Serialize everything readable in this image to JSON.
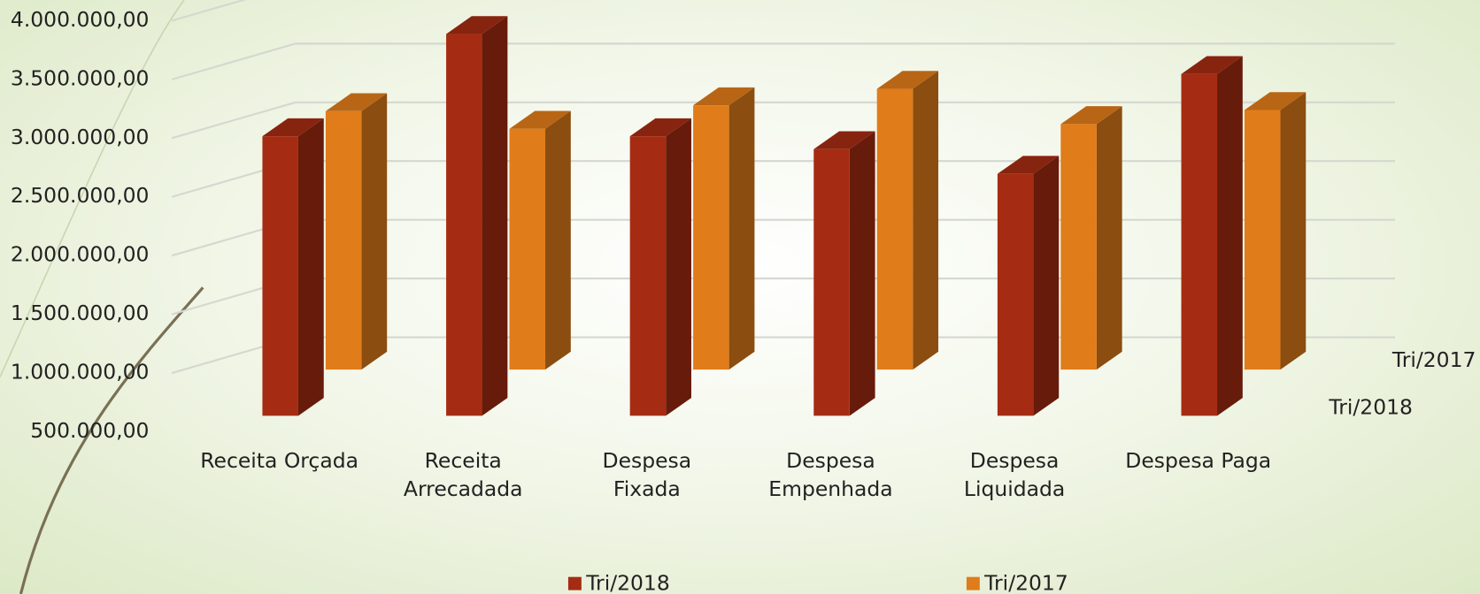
{
  "chart_data": {
    "type": "bar3d",
    "categories": [
      "Receita Orçada",
      "Receita Arrecadada",
      "Despesa Fixada",
      "Despesa Empenhada",
      "Despesa Liquidada",
      "Despesa Paga"
    ],
    "series": [
      {
        "name": "Tri/2018",
        "color": "#a52c12",
        "values": [
          2880000,
          3750000,
          2880000,
          2770000,
          2560000,
          3410000
        ]
      },
      {
        "name": "Tri/2017",
        "color": "#e07c1a",
        "values": [
          2700000,
          2550000,
          2750000,
          2890000,
          2590000,
          2710000
        ]
      }
    ],
    "ylim": [
      500000,
      4000000
    ],
    "yticks": [
      {
        "value": 500000,
        "label": "500.000,00"
      },
      {
        "value": 1000000,
        "label": "1.000.000,00"
      },
      {
        "value": 1500000,
        "label": "1.500.000,00"
      },
      {
        "value": 2000000,
        "label": "2.000.000,00"
      },
      {
        "value": 2500000,
        "label": "2.500.000,00"
      },
      {
        "value": 3000000,
        "label": "3.000.000,00"
      },
      {
        "value": 3500000,
        "label": "3.500.000,00"
      },
      {
        "value": 4000000,
        "label": "4.000.000,00"
      }
    ],
    "grid": true,
    "legend": "bottom"
  }
}
